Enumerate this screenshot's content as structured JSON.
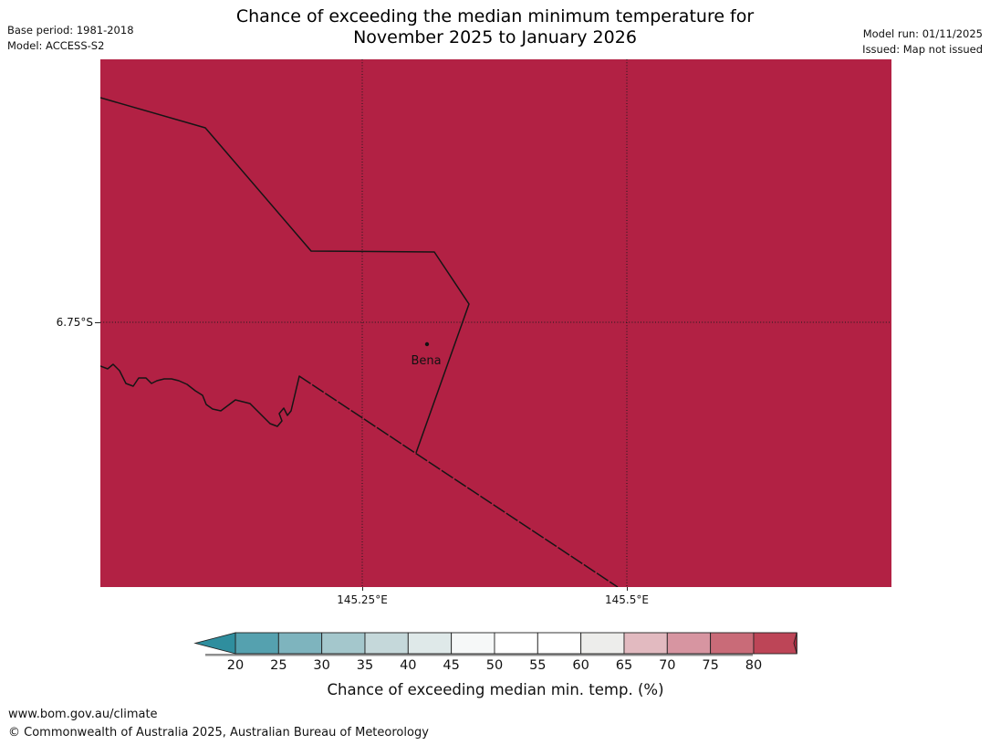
{
  "header": {
    "base_period": "Base period: 1981-2018",
    "model": "Model: ACCESS-S2",
    "title_line1": "Chance of exceeding the median minimum temperature for",
    "title_line2": "November 2025 to January 2026",
    "model_run": "Model run: 01/11/2025",
    "issued": "Issued: Map not issued"
  },
  "map": {
    "fill_color": "#b22144",
    "place_label": "Bena",
    "y_axis_label": "6.75°S",
    "x_axis_labels": [
      "145.25°E",
      "145.5°E"
    ]
  },
  "colorbar": {
    "tick_labels": [
      "20",
      "25",
      "30",
      "35",
      "40",
      "45",
      "50",
      "55",
      "60",
      "65",
      "70",
      "75",
      "80"
    ],
    "segment_colors": [
      "#55a1af",
      "#7eb4be",
      "#a4c7cc",
      "#c5d8da",
      "#dfe9e9",
      "#f6f8f8",
      "#ffffff",
      "#ffffff",
      "#ededeb",
      "#e2bac0",
      "#d795a1",
      "#c96b78",
      "#bd4557"
    ],
    "arrow_left_color": "#2f8e9e",
    "arrow_right_color": "#ac2a3f",
    "caption": "Chance of exceeding median min. temp. (%)"
  },
  "footer": {
    "url": "www.bom.gov.au/climate",
    "copyright": "© Commonwealth of Australia 2025, Australian Bureau of Meteorology"
  }
}
